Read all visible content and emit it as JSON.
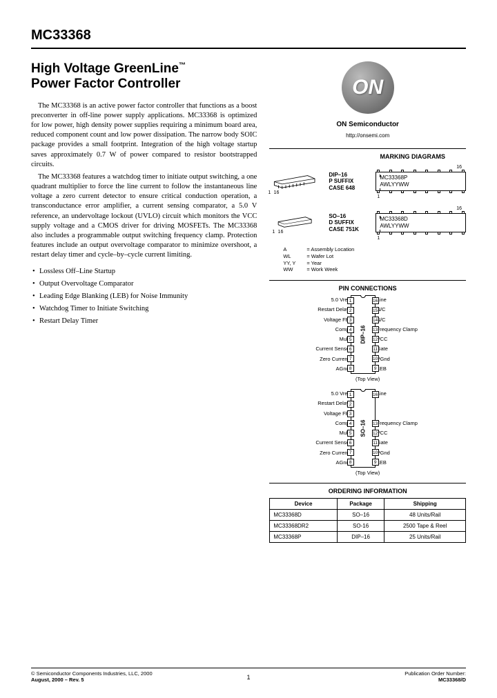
{
  "partNumber": "MC33368",
  "title": {
    "line1": "High Voltage GreenLine",
    "tm": "™",
    "line2": "Power Factor Controller"
  },
  "paragraphs": [
    "The MC33368 is an active power factor controller that functions as a boost preconverter in off-line power supply applications. MC33368 is optimized for low power, high density power supplies requiring a minimum board area, reduced component count and low power dissipation. The narrow body SOIC package provides a small footprint. Integration of the high voltage startup saves approximately 0.7 W of power compared to resistor bootstrapped circuits.",
    "The MC33368 features a watchdog timer to initiate output switching, a one quadrant multiplier to force the line current to follow the instantaneous line voltage a zero current detector to ensure critical conduction operation, a transconductance error amplifier, a current sensing comparator, a 5.0 V reference, an undervoltage lockout (UVLO) circuit which monitors the VCC supply voltage and a CMOS driver for driving MOSFETs. The MC33368 also includes a programmable output switching frequency clamp. Protection features include an output overvoltage comparator to minimize overshoot, a restart delay timer and cycle–by–cycle current limiting."
  ],
  "features": [
    "Lossless Off–Line Startup",
    "Output Overvoltage Comparator",
    "Leading Edge Blanking (LEB) for Noise Immunity",
    "Watchdog Timer to Initiate Switching",
    "Restart Delay Timer"
  ],
  "logo": {
    "text": "ON",
    "label": "ON Semiconductor",
    "url": "http://onsemi.com"
  },
  "marking": {
    "title": "MARKING DIAGRAMS",
    "packages": [
      {
        "name": "DIP–16",
        "suffix": "P SUFFIX",
        "case": "CASE 648",
        "markLine1": "MC33368P",
        "markLine2": "AWLYYWW",
        "pinHigh": "16",
        "pinLow": "1"
      },
      {
        "name": "SO–16",
        "suffix": "D SUFFIX",
        "case": "CASE 751K",
        "markLine1": "MC33368D",
        "markLine2": "AWLYYWW",
        "pinHigh": "16",
        "pinLow": "1"
      }
    ],
    "legend": [
      {
        "k": "A",
        "v": "= Assembly Location"
      },
      {
        "k": "WL",
        "v": "= Wafer Lot"
      },
      {
        "k": "YY, Y",
        "v": "= Year"
      },
      {
        "k": "WW",
        "v": "= Work Week"
      }
    ]
  },
  "pinConn": {
    "title": "PIN CONNECTIONS",
    "topView": "(Top View)",
    "packages": [
      {
        "label": "DIP–16",
        "left": [
          "5.0 Vref",
          "Restart Delay",
          "Voltage FB",
          "Comp",
          "Mult",
          "Current Sense",
          "Zero Current",
          "AGnd"
        ],
        "leftNums": [
          "1",
          "2",
          "3",
          "4",
          "5",
          "6",
          "7",
          "8"
        ],
        "right": [
          "Line",
          "N/C",
          "N/C",
          "Frequency Clamp",
          "VCC",
          "Gate",
          "PGnd",
          "LEB"
        ],
        "rightNums": [
          "16",
          "15",
          "14",
          "13",
          "12",
          "11",
          "10",
          "9"
        ]
      },
      {
        "label": "SO–16",
        "left": [
          "5.0 Vref",
          "Restart Delay",
          "Voltage FB",
          "Comp",
          "Mult",
          "Current Sense",
          "Zero Current",
          "AGnd"
        ],
        "leftNums": [
          "1",
          "2",
          "3",
          "4",
          "5",
          "6",
          "7",
          "8"
        ],
        "right": [
          "Line",
          "",
          "",
          "Frequency Clamp",
          "VCC",
          "Gate",
          "PGnd",
          "LEB"
        ],
        "rightNums": [
          "16",
          "",
          "",
          "13",
          "12",
          "11",
          "10",
          "9"
        ]
      }
    ]
  },
  "ordering": {
    "title": "ORDERING INFORMATION",
    "headers": [
      "Device",
      "Package",
      "Shipping"
    ],
    "rows": [
      [
        "MC33368D",
        "SO–16",
        "48 Units/Rail"
      ],
      [
        "MC33368DR2",
        "SO-16",
        "2500 Tape & Reel"
      ],
      [
        "MC33368P",
        "DIP–16",
        "25 Units/Rail"
      ]
    ]
  },
  "footer": {
    "copyright": "© Semiconductor Components Industries, LLC, 2000",
    "date": "August, 2000 – Rev. 5",
    "page": "1",
    "pubLabel": "Publication Order Number:",
    "pubNum": "MC33368/D"
  }
}
